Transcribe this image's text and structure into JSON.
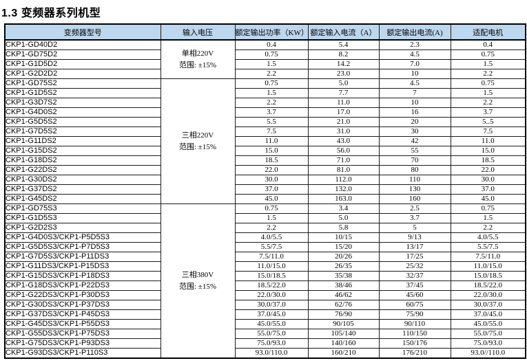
{
  "page_title": "1.3  变频器系列机型",
  "table": {
    "headers": [
      "变频器型号",
      "输入电压",
      "额定输出功率（KW）",
      "额定输入电流（A）",
      "额定输出电流(A)",
      "适配电机"
    ],
    "sections": [
      {
        "voltage_line1": "单相220V",
        "voltage_line2": "范围: ±15%",
        "rows": [
          [
            "CKP1-GD40D2",
            "0.4",
            "5.4",
            "2.3",
            "0.4"
          ],
          [
            "CKP1-GD75D2",
            "0.75",
            "8.2",
            "4.5",
            "0.75"
          ],
          [
            "CKP1-G1D5D2",
            "1.5",
            "14.2",
            "7.0",
            "1.5"
          ],
          [
            "CKP1-G2D2D2",
            "2.2",
            "23.0",
            "10",
            "2.2"
          ]
        ]
      },
      {
        "voltage_line1": "三相220V",
        "voltage_line2": "范围: ±15%",
        "rows": [
          [
            "CKP1-GD75S2",
            "0.75",
            "5.0",
            "4.5",
            "0.75"
          ],
          [
            "CKP1-G1D5S2",
            "1.5",
            "7.7",
            "7",
            "1.5"
          ],
          [
            "CKP1-G3D7S2",
            "2.2",
            "11.0",
            "10",
            "2.2"
          ],
          [
            "CKP1-G4D0S2",
            "3.7",
            "17.0",
            "16",
            "3.7"
          ],
          [
            "CKP1-G5D5S2",
            "5.5",
            "21.0",
            "20",
            "5..5"
          ],
          [
            "CKP1-G7D5S2",
            "7.5",
            "31.0",
            "30",
            "7.5"
          ],
          [
            "CKP1-G11DS2",
            "11.0",
            "43.0",
            "42",
            "11.0"
          ],
          [
            "CKP1-G15DS2",
            "15.0",
            "56.0",
            "55",
            "15.0"
          ],
          [
            "CKP1-G18DS2",
            "18.5",
            "71.0",
            "70",
            "18.5"
          ],
          [
            "CKP1-G22DS2",
            "22.0",
            "81.0",
            "80",
            "22.0"
          ],
          [
            "CKP1-G30DS2",
            "30.0",
            "112.0",
            "110",
            "30.0"
          ],
          [
            "CKP1-G37DS2",
            "37.0",
            "132.0",
            "130",
            "37.0"
          ],
          [
            "CKP1-G45DS2",
            "45.0",
            "163.0",
            "160",
            "45.0"
          ]
        ]
      },
      {
        "voltage_line1": "三相380V",
        "voltage_line2": "范围: ±15%",
        "rows": [
          [
            "CKP1-GD75S3",
            "0.75",
            "3.4",
            "2.5",
            "0.75"
          ],
          [
            "CKP1-G1D5S3",
            "1.5",
            "5.0",
            "3.7",
            "1.5"
          ],
          [
            "CKP1-G2D2S3",
            "2.2",
            "5.8",
            "5",
            "2.2"
          ],
          [
            "CKP1-G4D0S3/CKP1-P5D5S3",
            "4.0/5.5",
            "10/15",
            "9/13",
            "4.0/5.5"
          ],
          [
            "CKP1-G5D5S3/CKP1-P7D5S3",
            "5.5/7.5",
            "15/20",
            "13/17",
            "5.5/7.5"
          ],
          [
            "CKP1-G7D5S3/CKP1-P11DS3",
            "7.5/11.0",
            "20/26",
            "17/25",
            "7.5/11.0"
          ],
          [
            "CKP1-G11DS3/CKP1-P15DS3",
            "11.0/15.0",
            "26/35",
            "25/32",
            "11.0/15.0"
          ],
          [
            "CKP1-G15DS3/CKP1-P18DS3",
            "15.0/18.5",
            "35/38",
            "32/37",
            "15.0/18.5"
          ],
          [
            "CKP1-G18DS3/CKP1-P22DS3",
            "18.5/22.0",
            "38/46",
            "37/45",
            "18.5/22.0"
          ],
          [
            "CKP1-G22DS3/CKP1-P30DS3",
            "22.0/30.0",
            "46/62",
            "45/60",
            "22.0/30.0"
          ],
          [
            "CKP1-G30DS3/CKP1-P37DS3",
            "30.0/37.0",
            "62/76",
            "60/75",
            "30.0/37.0"
          ],
          [
            "CKP1-G37DS3/CKP1-P45DS3",
            "37.0/45.0",
            "76/90",
            "75/90",
            "37.0/45.0"
          ],
          [
            "CKP1-G45DS3/CKP1-P55DS3",
            "45.0/55.0",
            "90/105",
            "90/110",
            "45.0/55.0"
          ],
          [
            "CKP1-G55DS3/CKP1-P75DS3",
            "55.0/75.0",
            "105/140",
            "110/150",
            "55.0/75.0"
          ],
          [
            "CKP1-G75DS3/CKP1-P93DS3",
            "75.0/93.0",
            "140/160",
            "150/176",
            "75.0/93.0"
          ],
          [
            "CKP1-G93DS3/CKP1-P110S3",
            "93.0/110.0",
            "160/210",
            "176/210",
            "93.0//110.0"
          ]
        ]
      }
    ],
    "header_bg": "#bdd7ee"
  }
}
